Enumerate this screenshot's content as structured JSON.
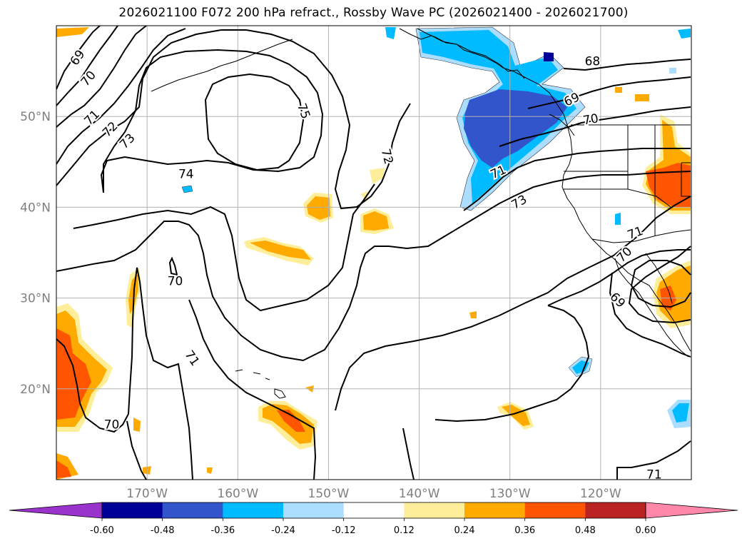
{
  "title": "2026021100 F072 200 hPa refract., Rossby Wave PC (2026021400 - 2026021700)",
  "map": {
    "lon_range": [
      -180,
      -110
    ],
    "lat_range": [
      10,
      60
    ],
    "lon_ticks": [
      {
        "value": -170,
        "label": "170°W"
      },
      {
        "value": -160,
        "label": "160°W"
      },
      {
        "value": -150,
        "label": "150°W"
      },
      {
        "value": -140,
        "label": "140°W"
      },
      {
        "value": -130,
        "label": "130°W"
      },
      {
        "value": -120,
        "label": "120°W"
      }
    ],
    "lat_ticks": [
      {
        "value": 50,
        "label": "50°N"
      },
      {
        "value": 40,
        "label": "40°N"
      },
      {
        "value": 30,
        "label": "30°N"
      },
      {
        "value": 20,
        "label": "20°N"
      }
    ],
    "gridlines": true,
    "land_color": "#ffffff",
    "coast_color": "#000000"
  },
  "contour_labels": [
    {
      "text": "69",
      "lon": -177.7,
      "lat": 56.5,
      "angle": -55
    },
    {
      "text": "70",
      "lon": -176.5,
      "lat": 54.2,
      "angle": -50
    },
    {
      "text": "71",
      "lon": -176.1,
      "lat": 49.9,
      "angle": -45
    },
    {
      "text": "72",
      "lon": -174.1,
      "lat": 48.6,
      "angle": -45
    },
    {
      "text": "73",
      "lon": -172.2,
      "lat": 47.3,
      "angle": -45
    },
    {
      "text": "74",
      "lon": -165.7,
      "lat": 43.7,
      "angle": 0
    },
    {
      "text": "75",
      "lon": -152.7,
      "lat": 50.6,
      "angle": 70
    },
    {
      "text": "72",
      "lon": -143.5,
      "lat": 45.6,
      "angle": 75
    },
    {
      "text": "70",
      "lon": -166.9,
      "lat": 31.9,
      "angle": 0
    },
    {
      "text": "71",
      "lon": -165.0,
      "lat": 23.4,
      "angle": 55
    },
    {
      "text": "70",
      "lon": -173.9,
      "lat": 16.1,
      "angle": 0
    },
    {
      "text": "68",
      "lon": -120.9,
      "lat": 56.1,
      "angle": 0
    },
    {
      "text": "69",
      "lon": -123.2,
      "lat": 51.9,
      "angle": -25
    },
    {
      "text": "70",
      "lon": -121.1,
      "lat": 49.7,
      "angle": -10
    },
    {
      "text": "71",
      "lon": -131.3,
      "lat": 43.9,
      "angle": -25
    },
    {
      "text": "73",
      "lon": -129.0,
      "lat": 40.6,
      "angle": -30
    },
    {
      "text": "71",
      "lon": -116.2,
      "lat": 37.2,
      "angle": -20
    },
    {
      "text": "70",
      "lon": -117.4,
      "lat": 34.8,
      "angle": -45
    },
    {
      "text": "69",
      "lon": -118.1,
      "lat": 29.8,
      "angle": 45
    },
    {
      "text": "71",
      "lon": -114.1,
      "lat": 10.6,
      "angle": 0
    }
  ],
  "colorbar": {
    "levels": [
      "-0.60",
      "-0.48",
      "-0.36",
      "-0.24",
      "-0.12",
      "0.12",
      "0.24",
      "0.36",
      "0.48",
      "0.60"
    ],
    "colors": [
      "#9933cc",
      "#000099",
      "#3355cc",
      "#00bbff",
      "#aaddff",
      "#ffffff",
      "#ffee99",
      "#ffaa00",
      "#ff5500",
      "#bb2222",
      "#ff88aa"
    ]
  }
}
